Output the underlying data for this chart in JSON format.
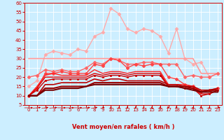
{
  "xlabel": "Vent moyen/en rafales ( km/h )",
  "bg_color": "#cceeff",
  "grid_color": "#ffffff",
  "x": [
    0,
    1,
    2,
    3,
    4,
    5,
    6,
    7,
    8,
    9,
    10,
    11,
    12,
    13,
    14,
    15,
    16,
    17,
    18,
    19,
    20,
    21,
    22,
    23
  ],
  "lines": [
    {
      "color": "#ffaaaa",
      "values": [
        15,
        18,
        32,
        34,
        33,
        32,
        35,
        34,
        42,
        44,
        57,
        54,
        46,
        44,
        46,
        45,
        42,
        33,
        46,
        30,
        27,
        28,
        20,
        22
      ],
      "marker": "D",
      "markersize": 2.5,
      "linewidth": 1.0
    },
    {
      "color": "#ff9999",
      "values": [
        30,
        30,
        30,
        30,
        30,
        30,
        30,
        30,
        30,
        30,
        30,
        30,
        30,
        30,
        30,
        30,
        30,
        30,
        30,
        30,
        30,
        22,
        22,
        22
      ],
      "marker": null,
      "markersize": 0,
      "linewidth": 1.2
    },
    {
      "color": "#ff6666",
      "values": [
        20,
        21,
        24,
        23,
        24,
        23,
        23,
        25,
        28,
        27,
        30,
        29,
        27,
        27,
        28,
        28,
        27,
        27,
        27,
        20,
        21,
        20,
        20,
        22
      ],
      "marker": "D",
      "markersize": 2.5,
      "linewidth": 1.0
    },
    {
      "color": "#ff4444",
      "values": [
        10,
        14,
        22,
        22,
        23,
        22,
        22,
        22,
        27,
        26,
        30,
        29,
        25,
        27,
        26,
        27,
        27,
        20,
        19,
        16,
        15,
        12,
        13,
        14
      ],
      "marker": "P",
      "markersize": 3,
      "linewidth": 1.0
    },
    {
      "color": "#ff2222",
      "values": [
        10,
        15,
        21,
        22,
        21,
        21,
        21,
        21,
        24,
        22,
        23,
        23,
        22,
        23,
        23,
        23,
        23,
        16,
        16,
        16,
        15,
        12,
        12,
        14
      ],
      "marker": null,
      "markersize": 0,
      "linewidth": 1.0
    },
    {
      "color": "#dd0000",
      "values": [
        10,
        14,
        20,
        20,
        20,
        20,
        20,
        20,
        22,
        21,
        22,
        22,
        21,
        22,
        22,
        22,
        22,
        15,
        15,
        15,
        14,
        11,
        11,
        13
      ],
      "marker": null,
      "markersize": 0,
      "linewidth": 1.0
    },
    {
      "color": "#cc0000",
      "values": [
        10,
        13,
        18,
        19,
        19,
        19,
        19,
        19,
        21,
        20,
        21,
        21,
        20,
        21,
        21,
        21,
        21,
        15,
        15,
        14,
        14,
        10,
        11,
        13
      ],
      "marker": "s",
      "markersize": 2,
      "linewidth": 1.0
    },
    {
      "color": "#bb0000",
      "values": [
        10,
        10,
        16,
        16,
        17,
        17,
        17,
        17,
        19,
        18,
        19,
        19,
        18,
        18,
        18,
        18,
        18,
        16,
        16,
        15,
        15,
        13,
        13,
        14
      ],
      "marker": null,
      "markersize": 0,
      "linewidth": 1.2
    },
    {
      "color": "#990000",
      "values": [
        10,
        10,
        14,
        14,
        15,
        15,
        15,
        15,
        17,
        17,
        17,
        17,
        17,
        17,
        17,
        17,
        17,
        15,
        15,
        15,
        14,
        12,
        13,
        13
      ],
      "marker": null,
      "markersize": 0,
      "linewidth": 1.5
    },
    {
      "color": "#770000",
      "values": [
        10,
        10,
        13,
        13,
        14,
        14,
        14,
        15,
        16,
        16,
        16,
        16,
        16,
        16,
        16,
        16,
        16,
        15,
        15,
        14,
        13,
        12,
        12,
        12
      ],
      "marker": null,
      "markersize": 0,
      "linewidth": 1.5
    }
  ],
  "arrow_angles": [
    90,
    70,
    60,
    70,
    90,
    90,
    90,
    75,
    55,
    40,
    5,
    0,
    0,
    0,
    0,
    0,
    355,
    350,
    350,
    350,
    5,
    350,
    5,
    50
  ],
  "ylim": [
    5,
    60
  ],
  "yticks": [
    5,
    10,
    15,
    20,
    25,
    30,
    35,
    40,
    45,
    50,
    55,
    60
  ],
  "xticks": [
    0,
    1,
    2,
    3,
    4,
    5,
    6,
    7,
    8,
    9,
    10,
    11,
    12,
    13,
    14,
    15,
    16,
    17,
    18,
    19,
    20,
    21,
    22,
    23
  ],
  "tick_fontsize": 5,
  "xlabel_fontsize": 6,
  "xlabel_color": "#cc0000",
  "tick_color": "#cc0000",
  "arrow_color": "#cc0000",
  "spine_color": "#cc0000"
}
